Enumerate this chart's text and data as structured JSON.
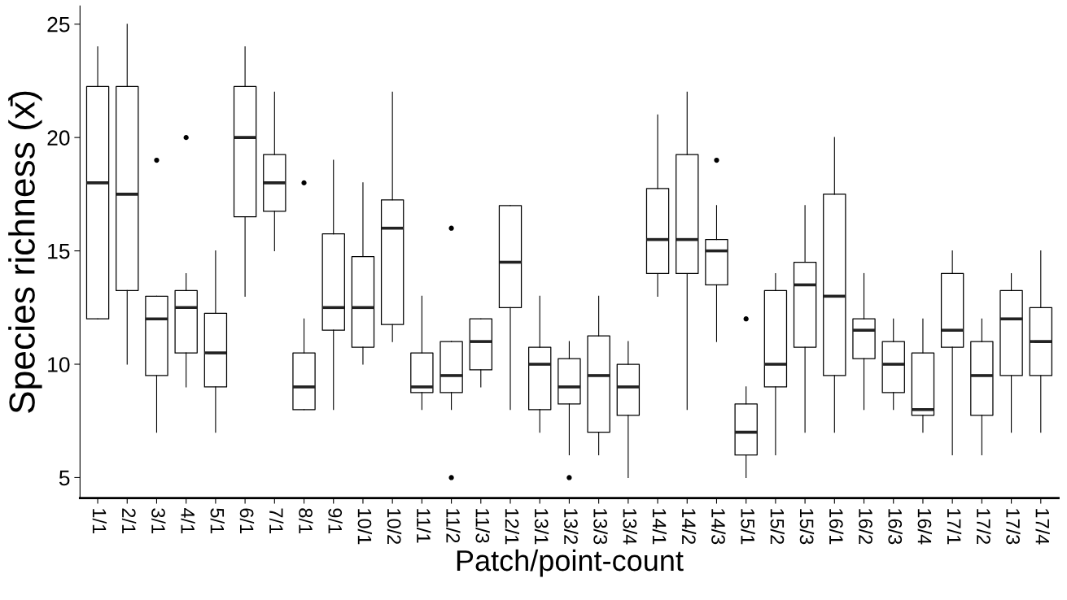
{
  "chart_data": {
    "type": "box",
    "xlabel": "Patch/point-count",
    "ylabel": "Species richness (x̄)",
    "categories": [
      "1/1",
      "2/1",
      "3/1",
      "4/1",
      "5/1",
      "6/1",
      "7/1",
      "8/1",
      "9/1",
      "10/1",
      "10/2",
      "11/1",
      "11/2",
      "11/3",
      "12/1",
      "13/1",
      "13/2",
      "13/3",
      "13/4",
      "14/1",
      "14/2",
      "14/3",
      "15/1",
      "15/2",
      "15/3",
      "16/1",
      "16/2",
      "16/3",
      "16/4",
      "17/1",
      "17/2",
      "17/3",
      "17/4"
    ],
    "ylim": [
      4.1,
      25.8
    ],
    "yticks": [
      5,
      10,
      15,
      20,
      25
    ],
    "grid": false,
    "color": "#000000",
    "boxes": [
      {
        "low": 12,
        "q1": 12,
        "median": 18,
        "q3": 22.25,
        "high": 24
      },
      {
        "low": 10,
        "q1": 13.25,
        "median": 17.5,
        "q3": 22.25,
        "high": 25
      },
      {
        "low": 7,
        "q1": 9.5,
        "median": 12,
        "q3": 13,
        "high": 13,
        "outliers": [
          19
        ]
      },
      {
        "low": 9,
        "q1": 10.5,
        "median": 12.5,
        "q3": 13.25,
        "high": 14,
        "outliers": [
          20
        ]
      },
      {
        "low": 7,
        "q1": 9,
        "median": 10.5,
        "q3": 12.25,
        "high": 15
      },
      {
        "low": 13,
        "q1": 16.5,
        "median": 20,
        "q3": 22.25,
        "high": 24
      },
      {
        "low": 15,
        "q1": 16.75,
        "median": 18,
        "q3": 19.25,
        "high": 22
      },
      {
        "low": 8,
        "q1": 8,
        "median": 9,
        "q3": 10.5,
        "high": 12,
        "outliers": [
          18
        ]
      },
      {
        "low": 8,
        "q1": 11.5,
        "median": 12.5,
        "q3": 15.75,
        "high": 19
      },
      {
        "low": 10,
        "q1": 10.75,
        "median": 12.5,
        "q3": 14.75,
        "high": 18
      },
      {
        "low": 11,
        "q1": 11.75,
        "median": 16,
        "q3": 17.25,
        "high": 22
      },
      {
        "low": 8,
        "q1": 8.75,
        "median": 9,
        "q3": 10.5,
        "high": 13
      },
      {
        "low": 8,
        "q1": 8.75,
        "median": 9.5,
        "q3": 11,
        "high": 11,
        "outliers": [
          16,
          5
        ]
      },
      {
        "low": 9,
        "q1": 9.75,
        "median": 11,
        "q3": 12,
        "high": 12
      },
      {
        "low": 8,
        "q1": 12.5,
        "median": 14.5,
        "q3": 17,
        "high": 17
      },
      {
        "low": 7,
        "q1": 8,
        "median": 10,
        "q3": 10.75,
        "high": 13
      },
      {
        "low": 6,
        "q1": 8.25,
        "median": 9,
        "q3": 10.25,
        "high": 11,
        "outliers": [
          5
        ]
      },
      {
        "low": 6,
        "q1": 7,
        "median": 9.5,
        "q3": 11.25,
        "high": 13
      },
      {
        "low": 5,
        "q1": 7.75,
        "median": 9,
        "q3": 10,
        "high": 11
      },
      {
        "low": 13,
        "q1": 14,
        "median": 15.5,
        "q3": 17.75,
        "high": 21
      },
      {
        "low": 8,
        "q1": 14,
        "median": 15.5,
        "q3": 19.25,
        "high": 22
      },
      {
        "low": 11,
        "q1": 13.5,
        "median": 15,
        "q3": 15.5,
        "high": 17,
        "outliers": [
          19
        ]
      },
      {
        "low": 5,
        "q1": 6,
        "median": 7,
        "q3": 8.25,
        "high": 9,
        "outliers": [
          12
        ]
      },
      {
        "low": 6,
        "q1": 9,
        "median": 10,
        "q3": 13.25,
        "high": 14
      },
      {
        "low": 7,
        "q1": 10.75,
        "median": 13.5,
        "q3": 14.5,
        "high": 17
      },
      {
        "low": 7,
        "q1": 9.5,
        "median": 13,
        "q3": 17.5,
        "high": 20
      },
      {
        "low": 8,
        "q1": 10.25,
        "median": 11.5,
        "q3": 12,
        "high": 14
      },
      {
        "low": 8,
        "q1": 8.75,
        "median": 10,
        "q3": 11,
        "high": 12
      },
      {
        "low": 7,
        "q1": 7.75,
        "median": 8,
        "q3": 10.5,
        "high": 12
      },
      {
        "low": 6,
        "q1": 10.75,
        "median": 11.5,
        "q3": 14,
        "high": 15
      },
      {
        "low": 6,
        "q1": 7.75,
        "median": 9.5,
        "q3": 11,
        "high": 12
      },
      {
        "low": 7,
        "q1": 9.5,
        "median": 12,
        "q3": 13.25,
        "high": 14
      },
      {
        "low": 7,
        "q1": 9.5,
        "median": 11,
        "q3": 12.5,
        "high": 15
      }
    ]
  }
}
